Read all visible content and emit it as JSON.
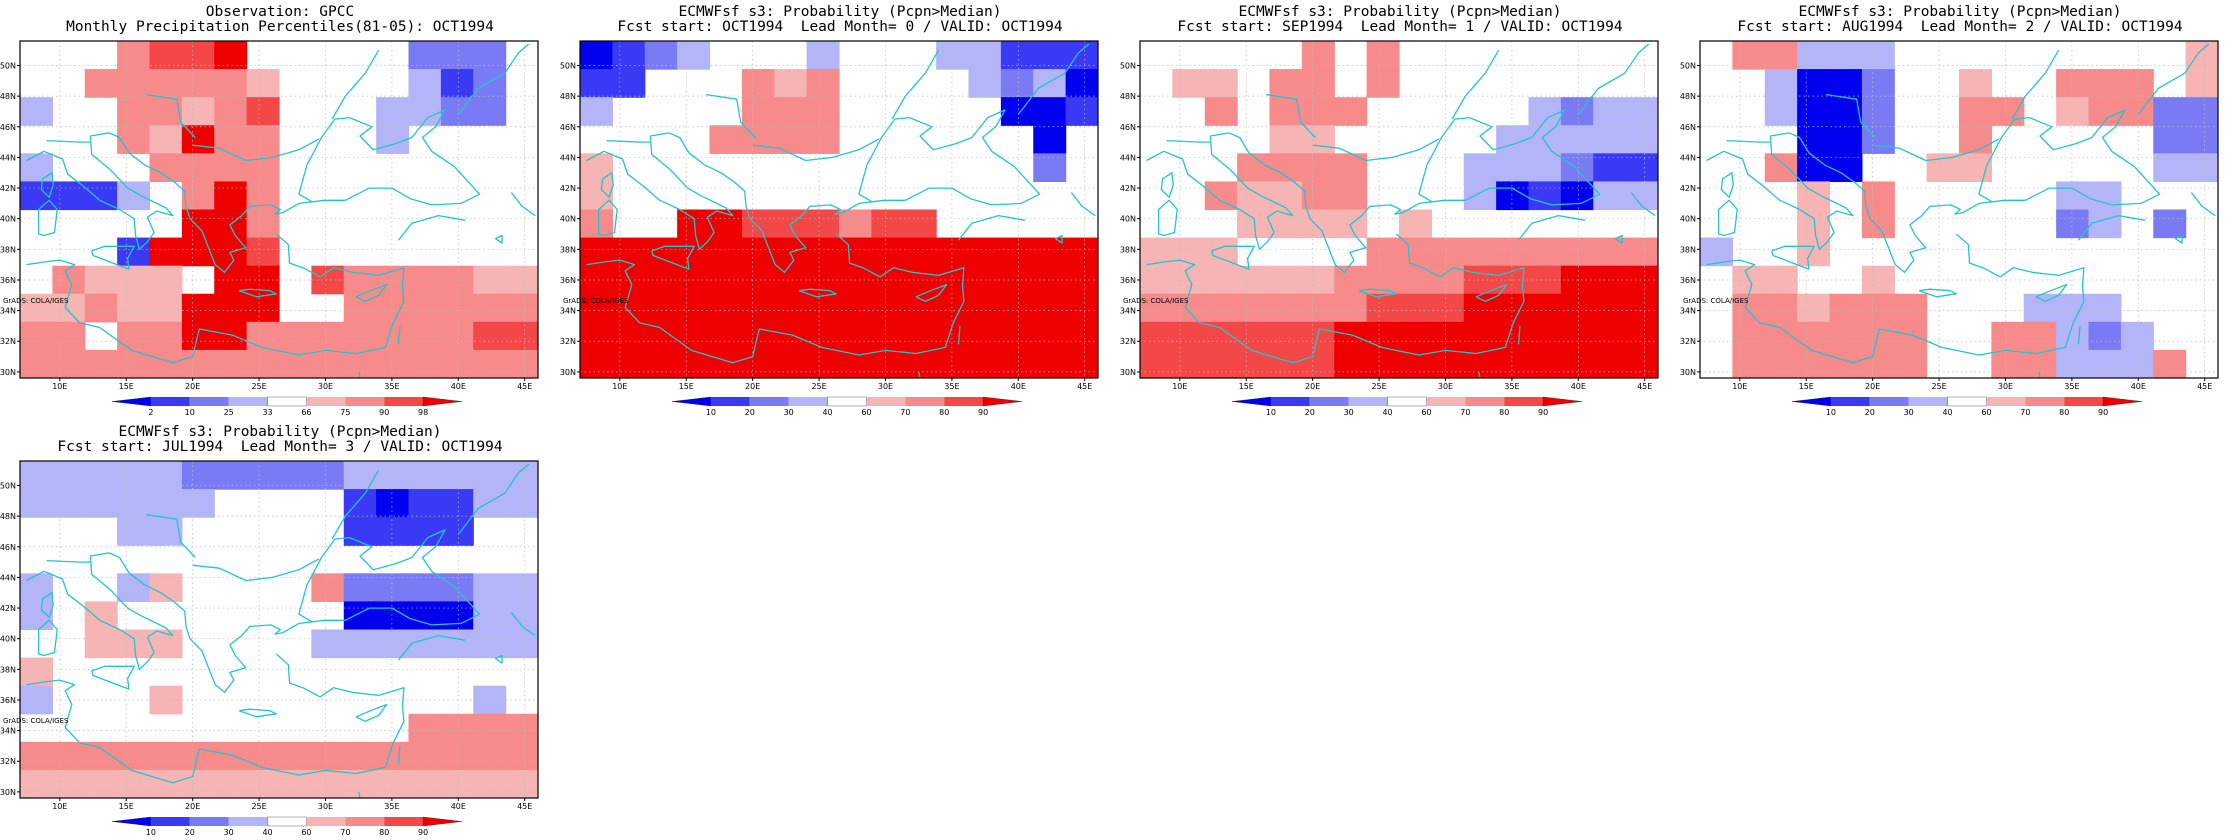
{
  "lon_ticks": [
    "10E",
    "15E",
    "20E",
    "25E",
    "30E",
    "35E",
    "40E",
    "45E"
  ],
  "lat_ticks": [
    "30N",
    "32N",
    "34N",
    "36N",
    "38N",
    "40N",
    "42N",
    "44N",
    "46N",
    "48N",
    "50N"
  ],
  "credit": "GrADS: COLA/IGES",
  "colors": {
    "coast": "#22c5cc",
    "grid": "#bbbbbb",
    "bins": [
      "#0000ee",
      "#3a3af5",
      "#7a7af5",
      "#b4b4f8",
      "#ffffff",
      "#f7b4b4",
      "#f78a8a",
      "#f44848",
      "#ee0000"
    ]
  },
  "legend_obs": {
    "labels": [
      "2",
      "10",
      "25",
      "33",
      "66",
      "75",
      "90",
      "98"
    ],
    "colors": [
      "#0000ee",
      "#3a3af5",
      "#7a7af5",
      "#b4b4f8",
      "#ffffff",
      "#f7b4b4",
      "#f78a8a",
      "#f44848",
      "#ee0000"
    ]
  },
  "legend_fcst": {
    "labels": [
      "10",
      "20",
      "30",
      "40",
      "60",
      "70",
      "80",
      "90"
    ],
    "colors": [
      "#0000ee",
      "#3a3af5",
      "#7a7af5",
      "#b4b4f8",
      "#ffffff",
      "#f7b4b4",
      "#f78a8a",
      "#f44848",
      "#ee0000"
    ]
  },
  "grid_note": "cells coded 1-9 (bin index into colors.bins), rows north->south, cols west->east",
  "panels": [
    {
      "title1": "Observation: GPCC",
      "title2": "Monthly Precipitation Percentiles(81-05): OCT1994",
      "legend": "obs",
      "cells": [
        "5557889555553335",
        "5577777655554235",
        "4557767855544335",
        "5557697755545555",
        "4555777755555555",
        "2224579755555555",
        "5555599755555555",
        "5552999855555555",
        "5766659958777766",
        "6676699955777777",
        "7757799777777788",
        "7777777777777777"
      ]
    },
    {
      "title1": "ECMWFsf s3: Probability (Pcpn>Median)",
      "title2": "Fcst start: OCT1994  Lead Month= 0 / VALID: OCT1994",
      "legend": "fcst",
      "cells": [
        "1234555455544222",
        "2255576755554341",
        "4555577755555112",
        "5555777755555515",
        "6555555555555535",
        "6555555555555555",
        "7559988878855555",
        "9999999999999999",
        "9999999999999999",
        "9999999999999999",
        "9999999999999999",
        "9999999999999999"
      ]
    },
    {
      "title1": "ECMWFsf s3: Probability (Pcpn>Median)",
      "title2": "Fcst start: SEP1994  Lead Month= 1 / VALID: OCT1994",
      "legend": "fcst",
      "cells": [
        "5555575755555555",
        "5665775755555555",
        "5575777555554344",
        "5555665555544444",
        "5557777555444322",
        "5576677555412144",
        "5556666565555555",
        "6665555777777777",
        "6666667777888999",
        "7777777888999999",
        "8888889999999999",
        "8888889999999999"
      ]
    },
    {
      "title1": "ECMWFsf s3: Probability (Pcpn>Median)",
      "title2": "Fcst start: AUG1994  Lead Month= 2 / VALID: OCT1994",
      "legend": "fcst",
      "cells": [
        "5774445555555556",
        "5541135565577756",
        "5541135577567733",
        "5551135575555533",
        "5571155665555544",
        "5556575555544555",
        "5556575555534535",
        "4556555555555555",
        "5665565555555555",
        "5776777555444555",
        "5777777557743455",
        "5777777557744475"
      ]
    },
    {
      "title1": "ECMWFsf s3: Probability (Pcpn>Median)",
      "title2": "Fcst start: JUL1994  Lead Month= 3 / VALID: OCT1994",
      "legend": "fcst",
      "cells": [
        "4444433333444444",
        "4444445555212244",
        "5554455555222255",
        "5555555555555555",
        "4554655557333344",
        "4565555555111144",
        "5566655554444444",
        "6555555555555555",
        "4555655555555545",
        "5555555555557777",
        "7777777777777777",
        "6666666666666666"
      ]
    }
  ]
}
